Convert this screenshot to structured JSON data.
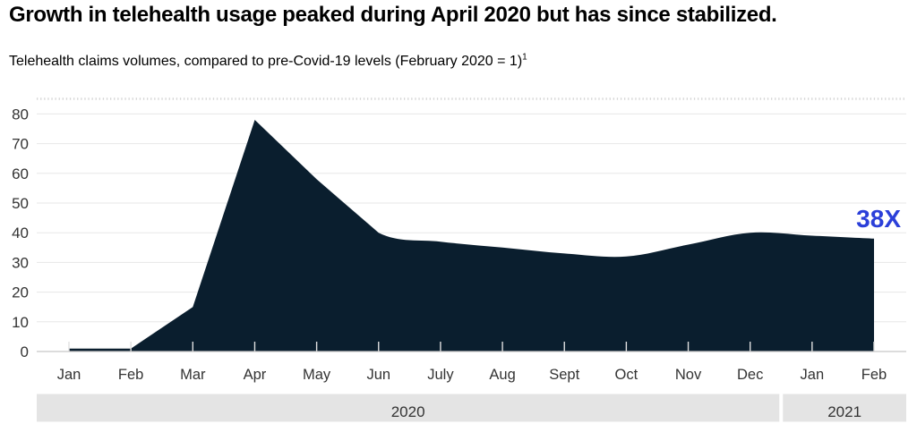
{
  "header": {
    "title": "Growth in telehealth usage peaked during April 2020 but has since stabilized.",
    "subtitle": "Telehealth claims volumes, compared to pre-Covid-19 levels (February 2020 = 1)",
    "footnote_marker": "1"
  },
  "chart_data": {
    "type": "area",
    "series_name": "Telehealth claims volume multiple vs. February 2020",
    "x": [
      "Jan",
      "Feb",
      "Mar",
      "Apr",
      "May",
      "Jun",
      "July",
      "Aug",
      "Sept",
      "Oct",
      "Nov",
      "Dec",
      "Jan",
      "Feb"
    ],
    "values": [
      1,
      1,
      15,
      78,
      58,
      40,
      37,
      35,
      33,
      32,
      36,
      40,
      39,
      38
    ],
    "year_groups": [
      {
        "label": "2020",
        "start_index": 0,
        "end_index": 11
      },
      {
        "label": "2021",
        "start_index": 12,
        "end_index": 13
      }
    ],
    "ylim": [
      0,
      80
    ],
    "yticks": [
      0,
      10,
      20,
      30,
      40,
      50,
      60,
      70,
      80
    ],
    "grid": true,
    "legend": "none",
    "annotation": {
      "text": "38X"
    },
    "colors": {
      "area_fill": "#0A1E2E",
      "annotation_blue": "#2B3FD9",
      "axis_text": "#333333",
      "year_band_fill": "#E4E4E4",
      "gridline": "#E7E7E7",
      "baseline": "#C6C6C6",
      "tick": "#E0E0E0"
    }
  }
}
